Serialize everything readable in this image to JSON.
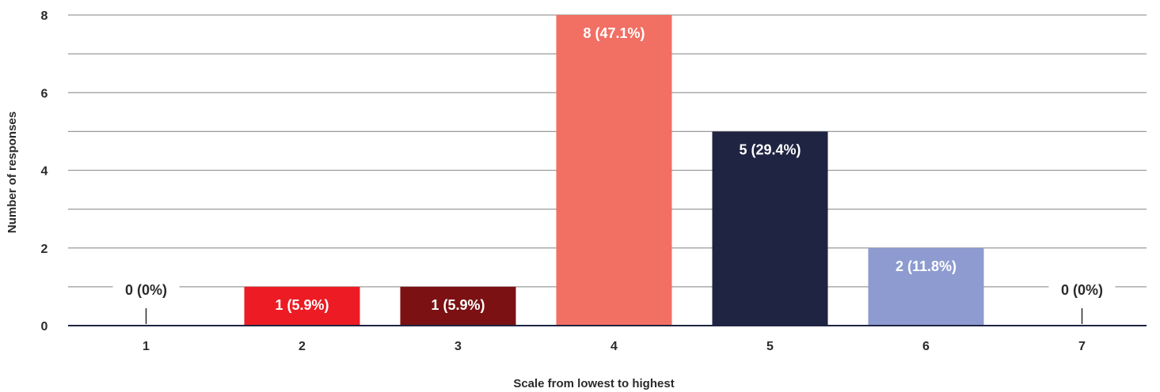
{
  "chart_data": {
    "type": "bar",
    "title": "",
    "xlabel": "Scale from lowest to highest",
    "ylabel": "Number of responses",
    "categories": [
      "1",
      "2",
      "3",
      "4",
      "5",
      "6",
      "7"
    ],
    "values": [
      0,
      1,
      1,
      8,
      5,
      2,
      0
    ],
    "data_labels": [
      "0 (0%)",
      "1 (5.9%)",
      "1 (5.9%)",
      "8 (47.1%)",
      "5 (29.4%)",
      "2 (11.8%)",
      "0 (0%)"
    ],
    "bar_colors": [
      "#ed1c24",
      "#ed1c24",
      "#7b1113",
      "#f26f63",
      "#1f2442",
      "#8d9bd0",
      "#ed1c24"
    ],
    "ylim": [
      0,
      8
    ],
    "yticks": [
      0,
      2,
      4,
      6,
      8
    ],
    "grid": true,
    "legend": "none"
  },
  "colors": {
    "grid": "#9a9a9a",
    "axis": "#1f2442",
    "text": "#2a2a2a",
    "label_inside": "#ffffff"
  }
}
